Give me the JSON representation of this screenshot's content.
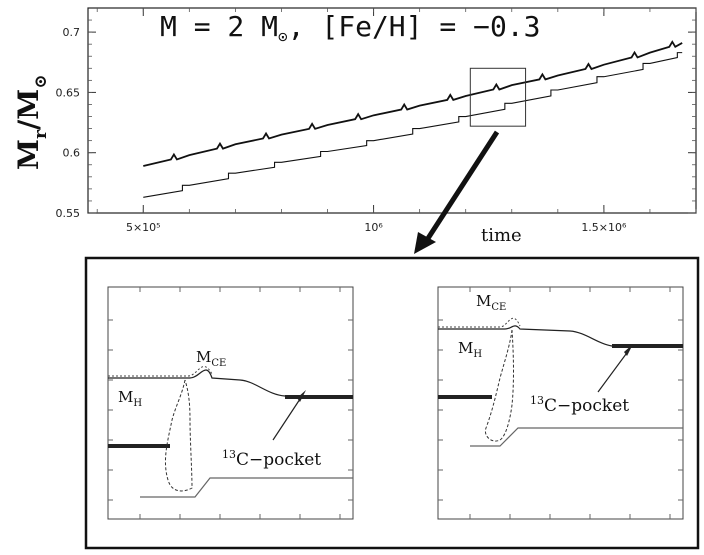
{
  "chart_data": [
    {
      "type": "line",
      "title": "M = 2 M⊙, [Fe/H] = −0.3",
      "ylabel": "Mr/M⊙",
      "xlabel": "time",
      "ylim": [
        0.55,
        0.72
      ],
      "xlim": [
        380000,
        1700000
      ],
      "yticks": [
        0.55,
        0.6,
        0.65,
        0.7
      ],
      "xticks": [
        {
          "value": 500000,
          "label": "5×10⁵"
        },
        {
          "value": 1000000,
          "label": "10⁶"
        },
        {
          "value": 1500000,
          "label": "1.5×10⁶"
        }
      ],
      "series": [
        {
          "x": [
            500000,
            600000,
            700000,
            800000,
            900000,
            1000000,
            1100000,
            1200000,
            1300000,
            1400000,
            1500000,
            1600000,
            1670000
          ],
          "values": [
            0.589,
            0.598,
            0.607,
            0.615,
            0.623,
            0.631,
            0.639,
            0.647,
            0.656,
            0.664,
            0.673,
            0.683,
            0.691
          ]
        },
        {
          "x": [
            500000,
            600000,
            700000,
            800000,
            900000,
            1000000,
            1100000,
            1200000,
            1300000,
            1400000,
            1500000,
            1600000,
            1670000
          ],
          "values": [
            0.563,
            0.573,
            0.583,
            0.592,
            0.601,
            0.61,
            0.62,
            0.63,
            0.641,
            0.652,
            0.663,
            0.674,
            0.683
          ]
        }
      ],
      "zoom_box": {
        "x": [
          1210000,
          1330000
        ],
        "y": [
          0.622,
          0.67
        ]
      }
    }
  ],
  "inset": {
    "left_panel": {
      "mce_label": "M",
      "mce_sub": "CE",
      "mh_label": "M",
      "mh_sub": "H",
      "pocket_sup": "13",
      "pocket_label": "C−pocket"
    },
    "right_panel": {
      "mce_label": "M",
      "mce_sub": "CE",
      "mh_label": "M",
      "mh_sub": "H",
      "pocket_sup": "13",
      "pocket_label": "C−pocket"
    }
  },
  "colors": {
    "line": "#111111",
    "frame": "#111111"
  }
}
